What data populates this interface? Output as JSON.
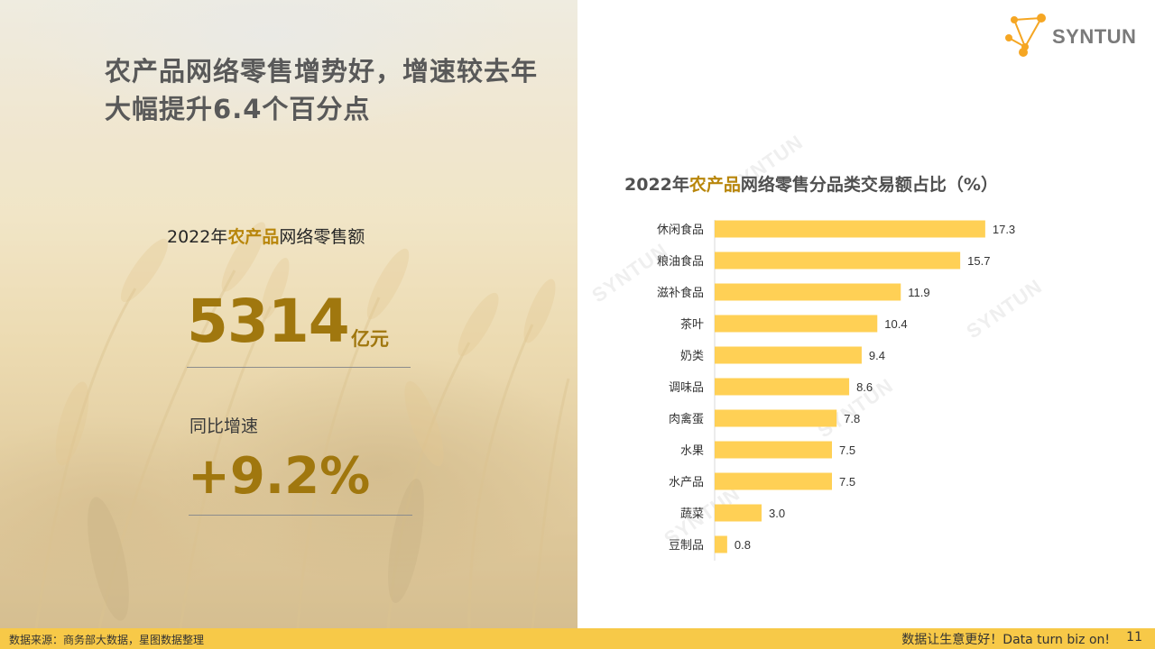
{
  "logo": {
    "text": "SYNTUN",
    "icon": "molecule-logo-icon",
    "accent": "#f5a623"
  },
  "headline": {
    "line1": "农产品网络零售增势好，增速较去年",
    "line2_prefix": "大幅提升",
    "line2_number": "6.4",
    "line2_suffix": "个百分点"
  },
  "kpi": {
    "title_year": "2022年",
    "title_highlight": "农产品",
    "title_rest": "网络零售额",
    "value": "5314",
    "unit": "亿元",
    "yoy_label": "同比增速",
    "yoy_value": "+9.2%"
  },
  "chart_title": {
    "year": "2022年",
    "highlight": "农产品",
    "rest": "网络零售分品类交易额占比（%）"
  },
  "watermark": "SYNTUN",
  "chart_data": {
    "type": "bar",
    "orientation": "horizontal",
    "title": "2022年农产品网络零售分品类交易额占比（%）",
    "categories": [
      "休闲食品",
      "粮油食品",
      "滋补食品",
      "茶叶",
      "奶类",
      "调味品",
      "肉禽蛋",
      "水果",
      "水产品",
      "蔬菜",
      "豆制品"
    ],
    "values": [
      17.3,
      15.7,
      11.9,
      10.4,
      9.4,
      8.6,
      7.8,
      7.5,
      7.5,
      3.0,
      0.8
    ],
    "value_labels": [
      "17.3",
      "15.7",
      "11.9",
      "10.4",
      "9.4",
      "8.6",
      "7.8",
      "7.5",
      "7.5",
      "3.0",
      "0.8"
    ],
    "bar_color": "#ffd055",
    "xlim": [
      0,
      18
    ],
    "grid": false,
    "data_labels": true
  },
  "footer": {
    "source": "数据来源：商务部大数据，星图数据整理",
    "slogan": "数据让生意更好！Data turn biz on!",
    "page": "11",
    "color": "#f7c948"
  }
}
